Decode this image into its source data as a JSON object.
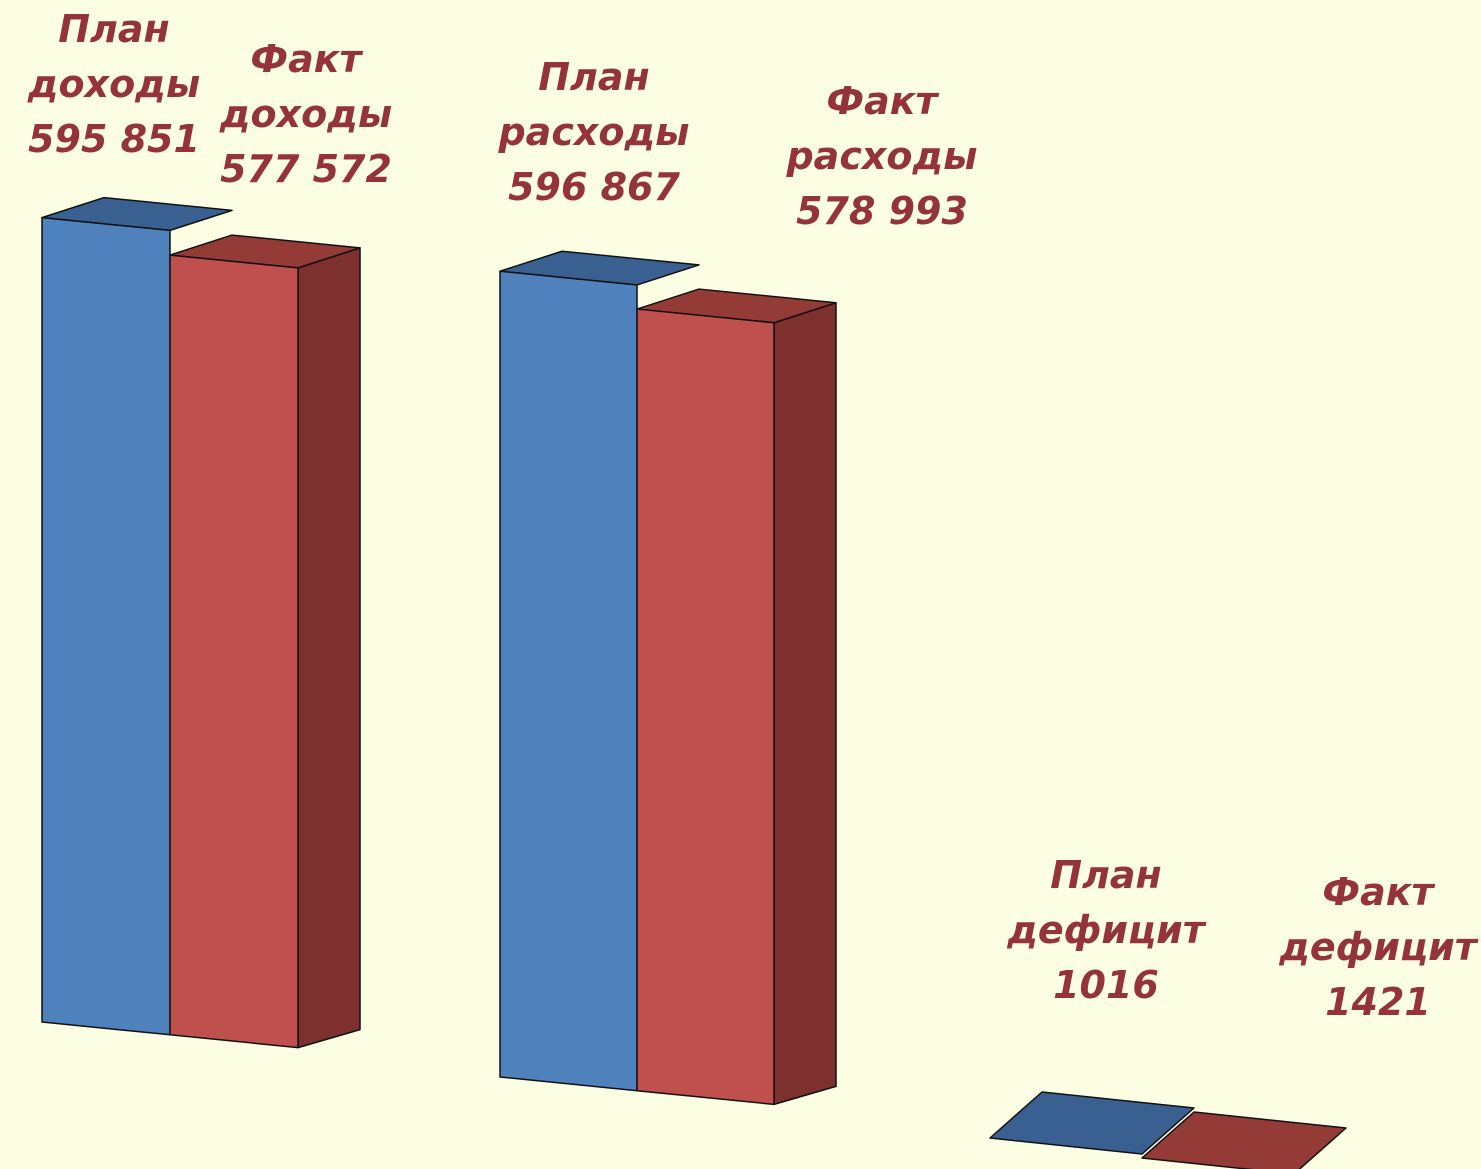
{
  "chart_data": {
    "type": "bar",
    "three_d": true,
    "grid": false,
    "legend": "none",
    "categories": [
      "доходы",
      "расходы",
      "дефицит"
    ],
    "series": [
      {
        "name": "План",
        "color": "#4F81BD",
        "values": [
          595851,
          596867,
          1016
        ]
      },
      {
        "name": "Факт",
        "color": "#C0504D",
        "values": [
          577572,
          578993,
          1421
        ]
      }
    ],
    "labels": [
      {
        "name": "plan-income",
        "lines": [
          "План",
          "доходы",
          "595 851"
        ]
      },
      {
        "name": "fact-income",
        "lines": [
          "Факт",
          "доходы",
          "577 572"
        ]
      },
      {
        "name": "plan-expense",
        "lines": [
          "План",
          "расходы",
          "596 867"
        ]
      },
      {
        "name": "fact-expense",
        "lines": [
          "Факт",
          "расходы",
          "578 993"
        ]
      },
      {
        "name": "plan-deficit",
        "lines": [
          "План",
          "дефицит",
          "1016"
        ]
      },
      {
        "name": "fact-deficit",
        "lines": [
          "Факт",
          "дефицит",
          "1421"
        ]
      }
    ],
    "colors": {
      "background": "#FCFEE4",
      "label": "#94343A",
      "plan_front": "#4F81BD",
      "plan_side": "#3A6091",
      "fact_front": "#C0504D",
      "fact_side": "#7D302E",
      "fact_top": "#943B38"
    }
  }
}
